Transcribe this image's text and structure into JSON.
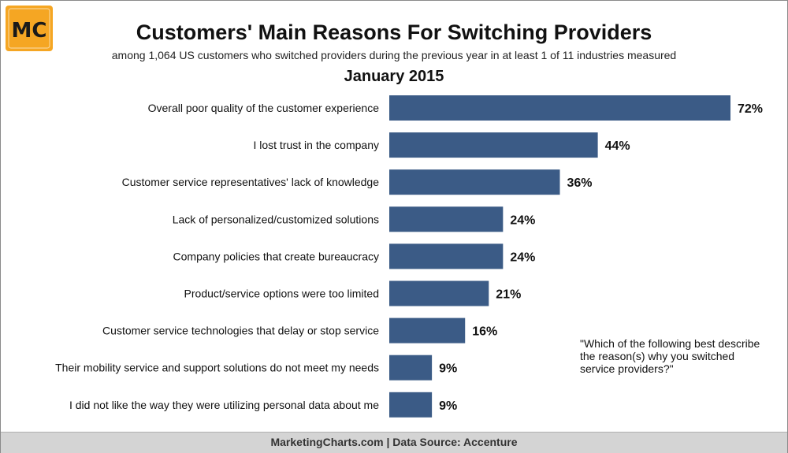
{
  "logo": {
    "text": "MC",
    "bg_color": "#f5a623",
    "text_color": "#1a1a1a"
  },
  "header": {
    "title": "Customers' Main Reasons For Switching Providers",
    "subtitle": "among 1,064 US customers who switched providers during the previous year in at least 1 of 11 industries measured",
    "period": "January 2015"
  },
  "note": "\"Which of the following best describe the reason(s) why you switched service providers?\"",
  "footer": "MarketingCharts.com | Data Source: Accenture",
  "chart_data": {
    "type": "bar",
    "orientation": "horizontal",
    "bar_color": "#3b5b86",
    "categories": [
      "Overall poor quality of the customer experience",
      "I lost trust in the company",
      "Customer service representatives' lack of knowledge",
      "Lack of personalized/customized solutions",
      "Company policies that create bureaucracy",
      "Product/service options were too limited",
      "Customer service technologies that delay or stop service",
      "Their mobility service and support solutions do not meet my needs",
      "I did not like the way they were utilizing personal data about me"
    ],
    "values": [
      72,
      44,
      36,
      24,
      24,
      21,
      16,
      9,
      9
    ],
    "value_labels": [
      "72%",
      "44%",
      "36%",
      "24%",
      "24%",
      "21%",
      "16%",
      "9%",
      "9%"
    ],
    "xlim": [
      0,
      72
    ],
    "grid": false
  }
}
